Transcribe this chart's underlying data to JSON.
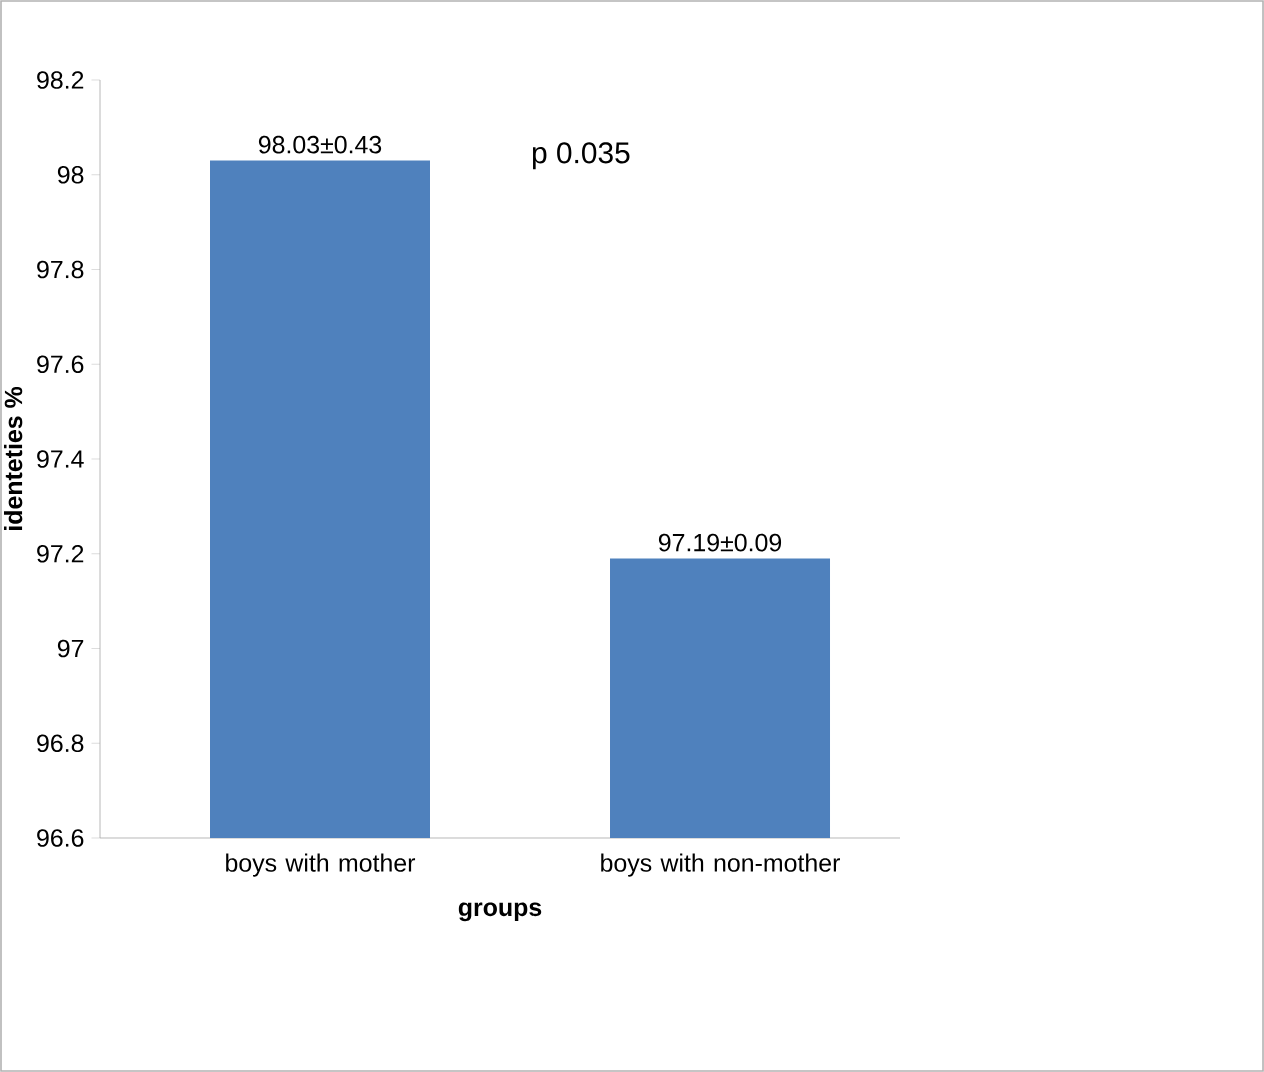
{
  "chart_data": {
    "type": "bar",
    "categories": [
      "boys with mother",
      "boys with non-mother"
    ],
    "values": [
      98.03,
      97.19
    ],
    "color": "#4f81bd",
    "value_labels": [
      "98.03±0.43",
      "97.19±0.09"
    ],
    "xlabel": "groups",
    "ylabel": "identeties %",
    "ylim": [
      96.6,
      98.2
    ],
    "yticks": [
      96.6,
      96.8,
      97,
      97.2,
      97.4,
      97.6,
      97.8,
      98,
      98.2
    ],
    "annotations": [
      "p 0.035"
    ]
  }
}
